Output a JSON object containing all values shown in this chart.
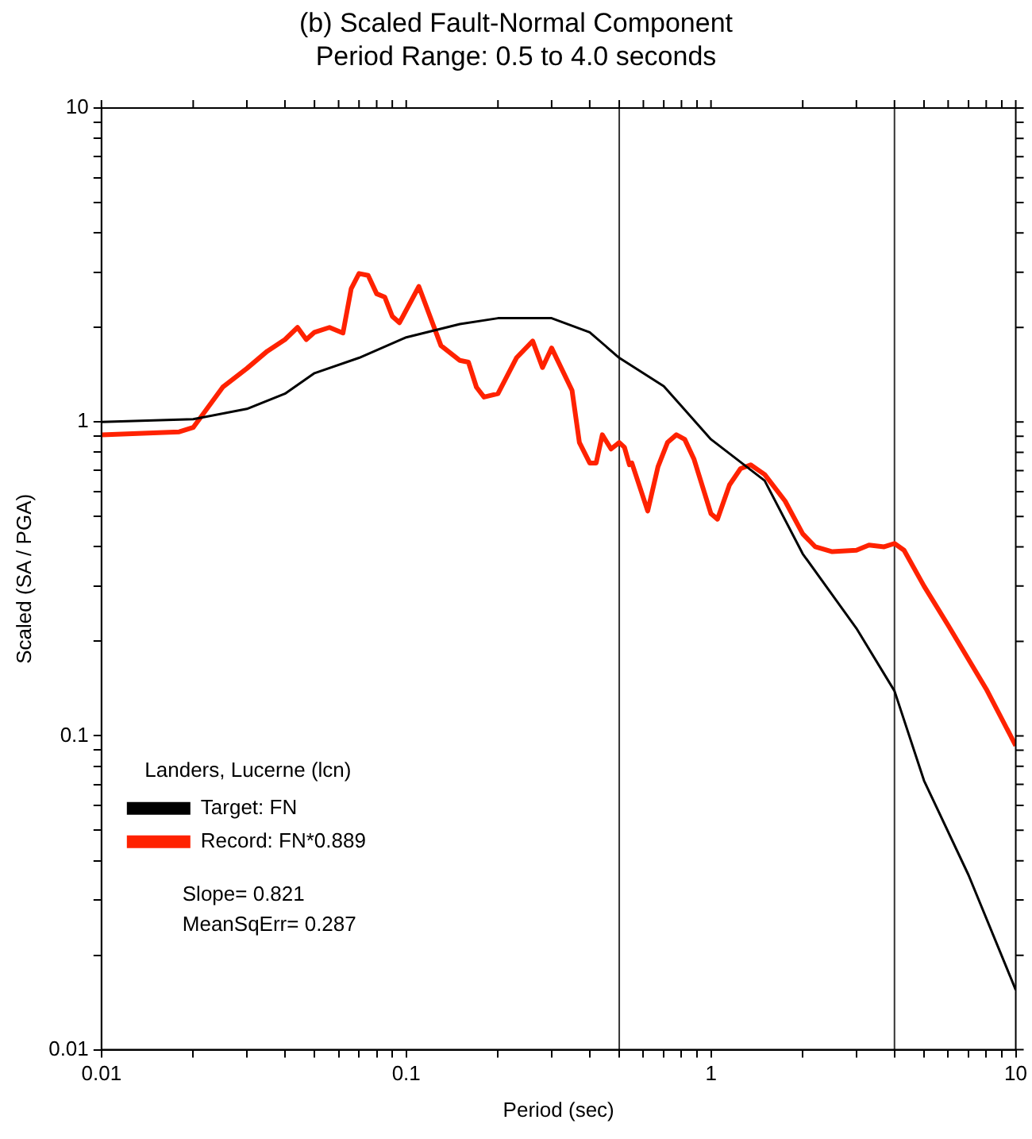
{
  "chart_data": {
    "type": "line",
    "title": "(b) Scaled Fault-Normal Component",
    "subtitle": "Period Range: 0.5 to 4.0 seconds",
    "xlabel": "Period (sec)",
    "ylabel": "Scaled (SA / PGA)",
    "log": "xy",
    "grid": false,
    "legend": "bottom left",
    "legend_title": "Landers, Lucerne (lcn)",
    "marker": "none",
    "line_style": "solid",
    "xlim": [
      0.01,
      10
    ],
    "ylim": [
      0.01,
      10
    ],
    "xticks": [
      0.01,
      {
        "value": 0.02,
        "label": null
      },
      {
        "value": 0.03,
        "label": null
      },
      {
        "value": 0.04,
        "label": null
      },
      {
        "value": 0.05,
        "label": null
      },
      {
        "value": 0.06,
        "label": null
      },
      {
        "value": 0.07,
        "label": null
      },
      {
        "value": 0.08,
        "label": null
      },
      {
        "value": 0.09,
        "label": null
      },
      0.1,
      {
        "value": 0.2,
        "label": null
      },
      {
        "value": 0.3,
        "label": null
      },
      {
        "value": 0.4,
        "label": null
      },
      {
        "value": 0.5,
        "label": null
      },
      {
        "value": 0.6,
        "label": null
      },
      {
        "value": 0.7,
        "label": null
      },
      {
        "value": 0.8,
        "label": null
      },
      {
        "value": 0.9,
        "label": null
      },
      1,
      {
        "value": 2,
        "label": null
      },
      {
        "value": 3,
        "label": null
      },
      {
        "value": 4,
        "label": null
      },
      {
        "value": 5,
        "label": null
      },
      {
        "value": 6,
        "label": null
      },
      {
        "value": 7,
        "label": null
      },
      {
        "value": 8,
        "label": null
      },
      {
        "value": 9,
        "label": null
      },
      10
    ],
    "yticks": [
      0.01,
      {
        "value": 0.02,
        "label": null
      },
      {
        "value": 0.03,
        "label": null
      },
      {
        "value": 0.04,
        "label": null
      },
      {
        "value": 0.05,
        "label": null
      },
      {
        "value": 0.06,
        "label": null
      },
      {
        "value": 0.07,
        "label": null
      },
      {
        "value": 0.08,
        "label": null
      },
      {
        "value": 0.09,
        "label": null
      },
      0.1,
      {
        "value": 0.2,
        "label": null
      },
      {
        "value": 0.3,
        "label": null
      },
      {
        "value": 0.4,
        "label": null
      },
      {
        "value": 0.5,
        "label": null
      },
      {
        "value": 0.6,
        "label": null
      },
      {
        "value": 0.7,
        "label": null
      },
      {
        "value": 0.8,
        "label": null
      },
      {
        "value": 0.9,
        "label": null
      },
      1,
      {
        "value": 2,
        "label": null
      },
      {
        "value": 3,
        "label": null
      },
      {
        "value": 4,
        "label": null
      },
      {
        "value": 5,
        "label": null
      },
      {
        "value": 6,
        "label": null
      },
      {
        "value": 7,
        "label": null
      },
      {
        "value": 8,
        "label": null
      },
      {
        "value": 9,
        "label": null
      },
      10
    ],
    "ref_lines": [
      {
        "axis": "x",
        "value": 0.5,
        "color": "#333333"
      },
      {
        "axis": "x",
        "value": 4,
        "color": "#333333"
      }
    ],
    "annotations": [
      "Slope= 0.821",
      "MeanSqErr= 0.287"
    ],
    "series": [
      {
        "name": "Target: FN",
        "color": "#000000",
        "x": [
          0.01,
          0.02,
          0.03,
          0.04,
          0.05,
          0.07,
          0.1,
          0.15,
          0.2,
          0.3,
          0.4,
          0.5,
          0.7,
          1,
          1.5,
          2,
          3,
          4,
          5,
          7,
          10
        ],
        "values": [
          1.0,
          1.02,
          1.1,
          1.23,
          1.43,
          1.6,
          1.86,
          2.05,
          2.14,
          2.14,
          1.93,
          1.6,
          1.3,
          0.88,
          0.65,
          0.38,
          0.22,
          0.139,
          0.072,
          0.036,
          0.0155
        ]
      },
      {
        "name": "Record: FN*0.889",
        "color": "#ff2200",
        "x": [
          0.01,
          0.018,
          0.02,
          0.025,
          0.03,
          0.035,
          0.04,
          0.044,
          0.047,
          0.05,
          0.056,
          0.062,
          0.066,
          0.07,
          0.075,
          0.08,
          0.085,
          0.09,
          0.095,
          0.11,
          0.13,
          0.15,
          0.16,
          0.17,
          0.18,
          0.2,
          0.23,
          0.26,
          0.28,
          0.3,
          0.35,
          0.37,
          0.4,
          0.42,
          0.44,
          0.47,
          0.5,
          0.52,
          0.54,
          0.55,
          0.62,
          0.67,
          0.72,
          0.77,
          0.82,
          0.88,
          1.0,
          1.05,
          1.15,
          1.25,
          1.35,
          1.5,
          1.75,
          2.0,
          2.2,
          2.5,
          3.0,
          3.3,
          3.7,
          4.0,
          4.3,
          5.0,
          6.0,
          8.0,
          10
        ],
        "values": [
          0.91,
          0.93,
          0.96,
          1.29,
          1.48,
          1.68,
          1.83,
          2.0,
          1.83,
          1.93,
          2.0,
          1.92,
          2.66,
          2.97,
          2.93,
          2.56,
          2.5,
          2.17,
          2.07,
          2.7,
          1.75,
          1.57,
          1.55,
          1.29,
          1.2,
          1.23,
          1.6,
          1.81,
          1.49,
          1.72,
          1.26,
          0.86,
          0.74,
          0.74,
          0.91,
          0.82,
          0.86,
          0.83,
          0.73,
          0.74,
          0.52,
          0.72,
          0.86,
          0.91,
          0.88,
          0.76,
          0.51,
          0.49,
          0.63,
          0.71,
          0.73,
          0.68,
          0.56,
          0.44,
          0.4,
          0.386,
          0.39,
          0.405,
          0.4,
          0.41,
          0.39,
          0.3,
          0.225,
          0.141,
          0.093
        ]
      }
    ]
  }
}
